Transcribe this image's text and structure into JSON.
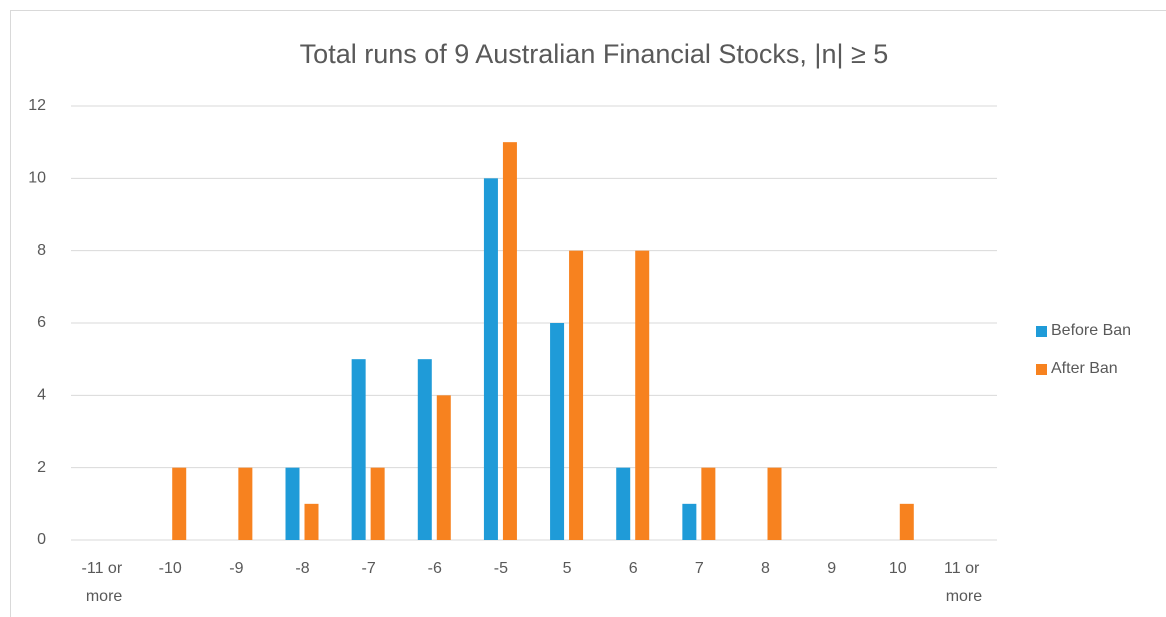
{
  "chart_data": {
    "type": "bar",
    "title": "Total runs of 9 Australian Financial Stocks, |n| ≥ 5",
    "categories": [
      "-11 or more",
      "-10",
      "-9",
      "-8",
      "-7",
      "-6",
      "-5",
      "5",
      "6",
      "7",
      "8",
      "9",
      "10",
      "11 or more"
    ],
    "series": [
      {
        "name": "Before Ban",
        "color": "#1f9bd8",
        "values": [
          0,
          0,
          0,
          2,
          5,
          5,
          10,
          6,
          2,
          1,
          0,
          0,
          0,
          0
        ]
      },
      {
        "name": "After Ban",
        "color": "#f7821f",
        "values": [
          0,
          2,
          2,
          1,
          2,
          4,
          11,
          8,
          8,
          2,
          2,
          0,
          1,
          0
        ]
      }
    ],
    "ylim": [
      0,
      12
    ],
    "yticks": [
      0,
      2,
      4,
      6,
      8,
      10,
      12
    ],
    "grid": true,
    "legend": "right"
  }
}
